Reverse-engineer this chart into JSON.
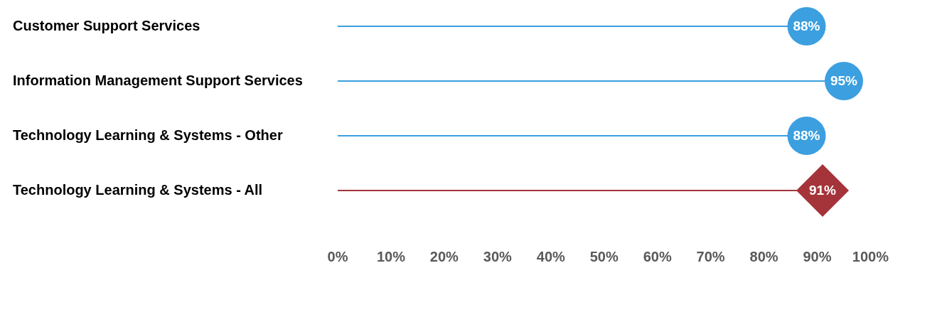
{
  "chart_data": {
    "type": "lollipop",
    "orientation": "horizontal",
    "categories": [
      "Customer Support Services",
      "Information Management Support Services",
      "Technology Learning & Systems - Other",
      "Technology Learning & Systems - All"
    ],
    "series": [
      {
        "color": "#3b9fe0",
        "marker": "circle",
        "values": [
          88,
          95,
          88,
          null
        ],
        "value_labels": [
          "88%",
          "95%",
          "88%",
          null
        ]
      },
      {
        "color": "#a4343a",
        "marker": "diamond",
        "values": [
          null,
          null,
          null,
          91
        ],
        "value_labels": [
          null,
          null,
          null,
          "91%"
        ]
      }
    ],
    "xlim": [
      0,
      100
    ],
    "xticks": [
      {
        "value": 0,
        "label": "0%"
      },
      {
        "value": 10,
        "label": "10%"
      },
      {
        "value": 20,
        "label": "20%"
      },
      {
        "value": 30,
        "label": "30%"
      },
      {
        "value": 40,
        "label": "40%"
      },
      {
        "value": 50,
        "label": "50%"
      },
      {
        "value": 60,
        "label": "60%"
      },
      {
        "value": 70,
        "label": "70%"
      },
      {
        "value": 80,
        "label": "80%"
      },
      {
        "value": 90,
        "label": "90%"
      },
      {
        "value": 100,
        "label": "100%"
      }
    ],
    "grid": false,
    "legend": false
  }
}
